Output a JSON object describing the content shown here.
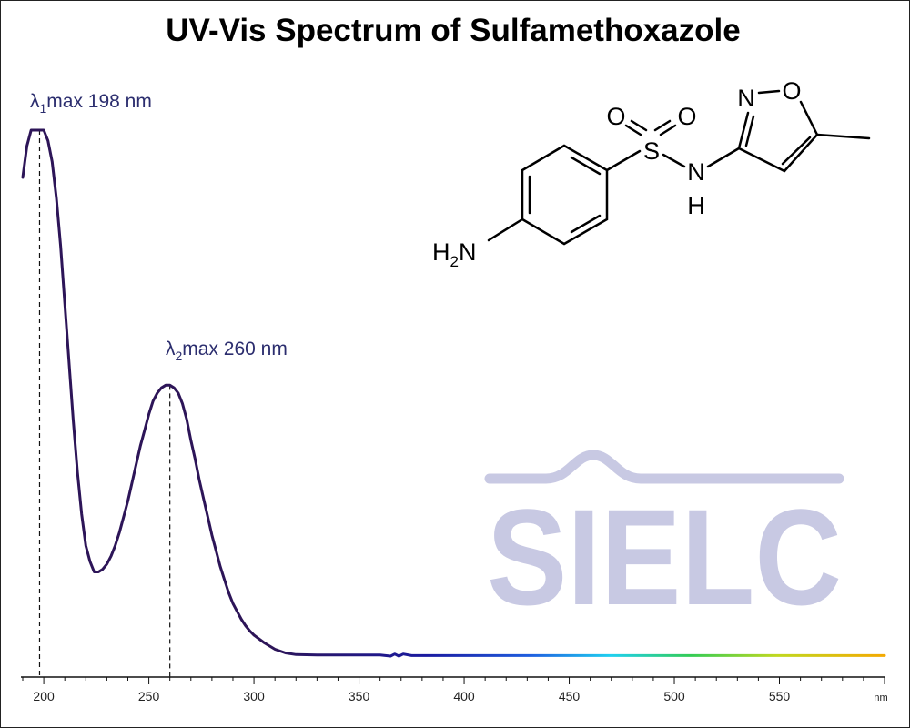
{
  "chart_data": {
    "type": "line",
    "title": "UV-Vis Spectrum of Sulfamethoxazole",
    "xlabel": "nm",
    "ylabel": "",
    "xlim": [
      190,
      600
    ],
    "ylim": [
      0,
      1
    ],
    "x_ticks": [
      200,
      250,
      300,
      350,
      400,
      450,
      500,
      550
    ],
    "grid": false,
    "series": [
      {
        "x": [
          190,
          192,
          194,
          196,
          198,
          200,
          202,
          204,
          206,
          208,
          210,
          212,
          214,
          216,
          218,
          220,
          222,
          224,
          226,
          228,
          230,
          232,
          234,
          236,
          238,
          240,
          242,
          244,
          246,
          248,
          250,
          252,
          254,
          256,
          258,
          260,
          262,
          264,
          266,
          268,
          270,
          272,
          274,
          276,
          278,
          280,
          282,
          284,
          286,
          288,
          290,
          292,
          294,
          296,
          298,
          300,
          305,
          310,
          315,
          320,
          330,
          340,
          350,
          360,
          365,
          367,
          369,
          371,
          375,
          380,
          400,
          450,
          500,
          550,
          600
        ],
        "y": [
          0.91,
          0.97,
          1.0,
          1.0,
          1.0,
          1.0,
          0.98,
          0.94,
          0.87,
          0.78,
          0.67,
          0.56,
          0.45,
          0.35,
          0.27,
          0.21,
          0.18,
          0.16,
          0.16,
          0.165,
          0.175,
          0.19,
          0.21,
          0.235,
          0.265,
          0.295,
          0.33,
          0.365,
          0.4,
          0.43,
          0.46,
          0.485,
          0.5,
          0.51,
          0.515,
          0.515,
          0.51,
          0.5,
          0.48,
          0.45,
          0.41,
          0.375,
          0.335,
          0.3,
          0.265,
          0.23,
          0.2,
          0.17,
          0.145,
          0.12,
          0.1,
          0.085,
          0.07,
          0.058,
          0.048,
          0.04,
          0.025,
          0.013,
          0.006,
          0.003,
          0.002,
          0.002,
          0.002,
          0.002,
          0.0,
          0.004,
          0.0,
          0.004,
          0.001,
          0.001,
          0.001,
          0.001,
          0.001,
          0.001,
          0.001
        ]
      }
    ],
    "annotations": [
      {
        "x": 198,
        "prefix": "λ",
        "sub": "1",
        "suffix": "max  198 nm"
      },
      {
        "x": 260,
        "prefix": "λ",
        "sub": "2",
        "suffix": "max  260 nm"
      }
    ],
    "line_color": "#2d1558",
    "spectrum_colors": [
      "#2d1558",
      "#1a1aa0",
      "#1f5fe0",
      "#1fd0f0",
      "#33cc55",
      "#c0d820",
      "#f5a800"
    ]
  },
  "molecule": {
    "atoms": [
      "O",
      "O",
      "S",
      "N",
      "H",
      "N",
      "O",
      "H",
      "N"
    ],
    "h_sub": "2"
  },
  "logo": {
    "text": "SIELC",
    "color": "#c8c9e3"
  }
}
